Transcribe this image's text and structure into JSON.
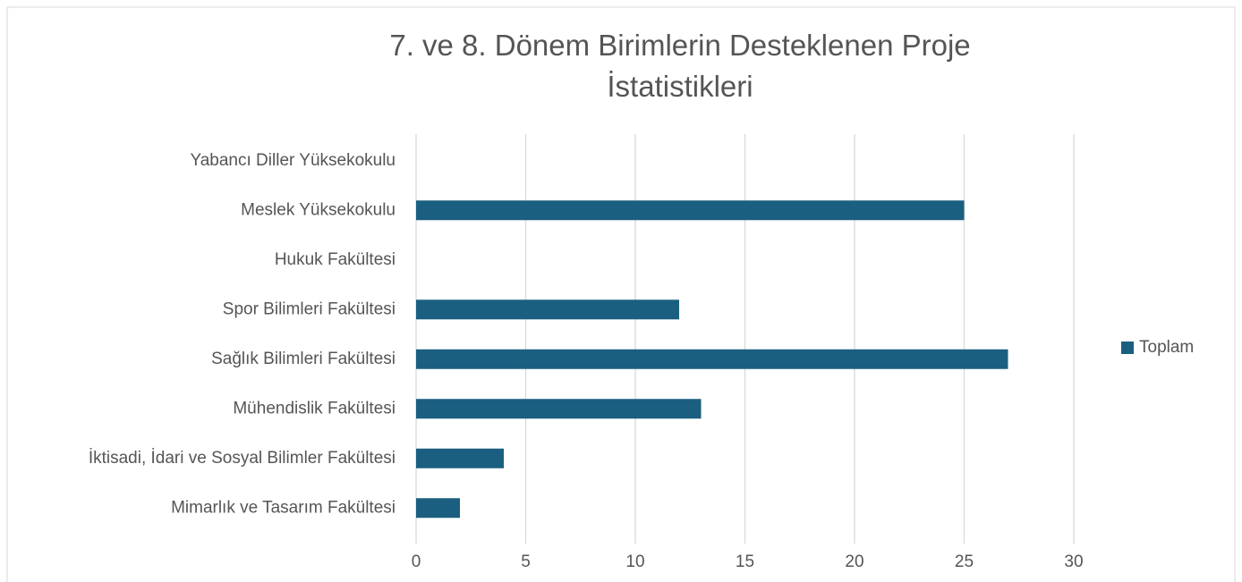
{
  "chart_data": {
    "type": "barh",
    "title": "7. ve 8. Dönem Birimlerin Desteklenen Proje İstatistikleri",
    "categories": [
      "Yabancı Diller Yüksekokulu",
      "Meslek Yüksekokulu",
      "Hukuk Fakültesi",
      "Spor Bilimleri Fakültesi",
      "Sağlık Bilimleri Fakültesi",
      "Mühendislik Fakültesi",
      "İktisadi, İdari ve Sosyal Bilimler Fakültesi",
      "Mimarlık ve Tasarım Fakültesi"
    ],
    "series": [
      {
        "name": "Toplam",
        "color": "#1b5f80",
        "values": [
          0,
          25,
          0,
          12,
          27,
          13,
          4,
          2
        ]
      }
    ],
    "xlim": [
      0,
      30
    ],
    "xticks": [
      0,
      5,
      10,
      15,
      20,
      25,
      30
    ],
    "grid": true,
    "legend": "right"
  }
}
